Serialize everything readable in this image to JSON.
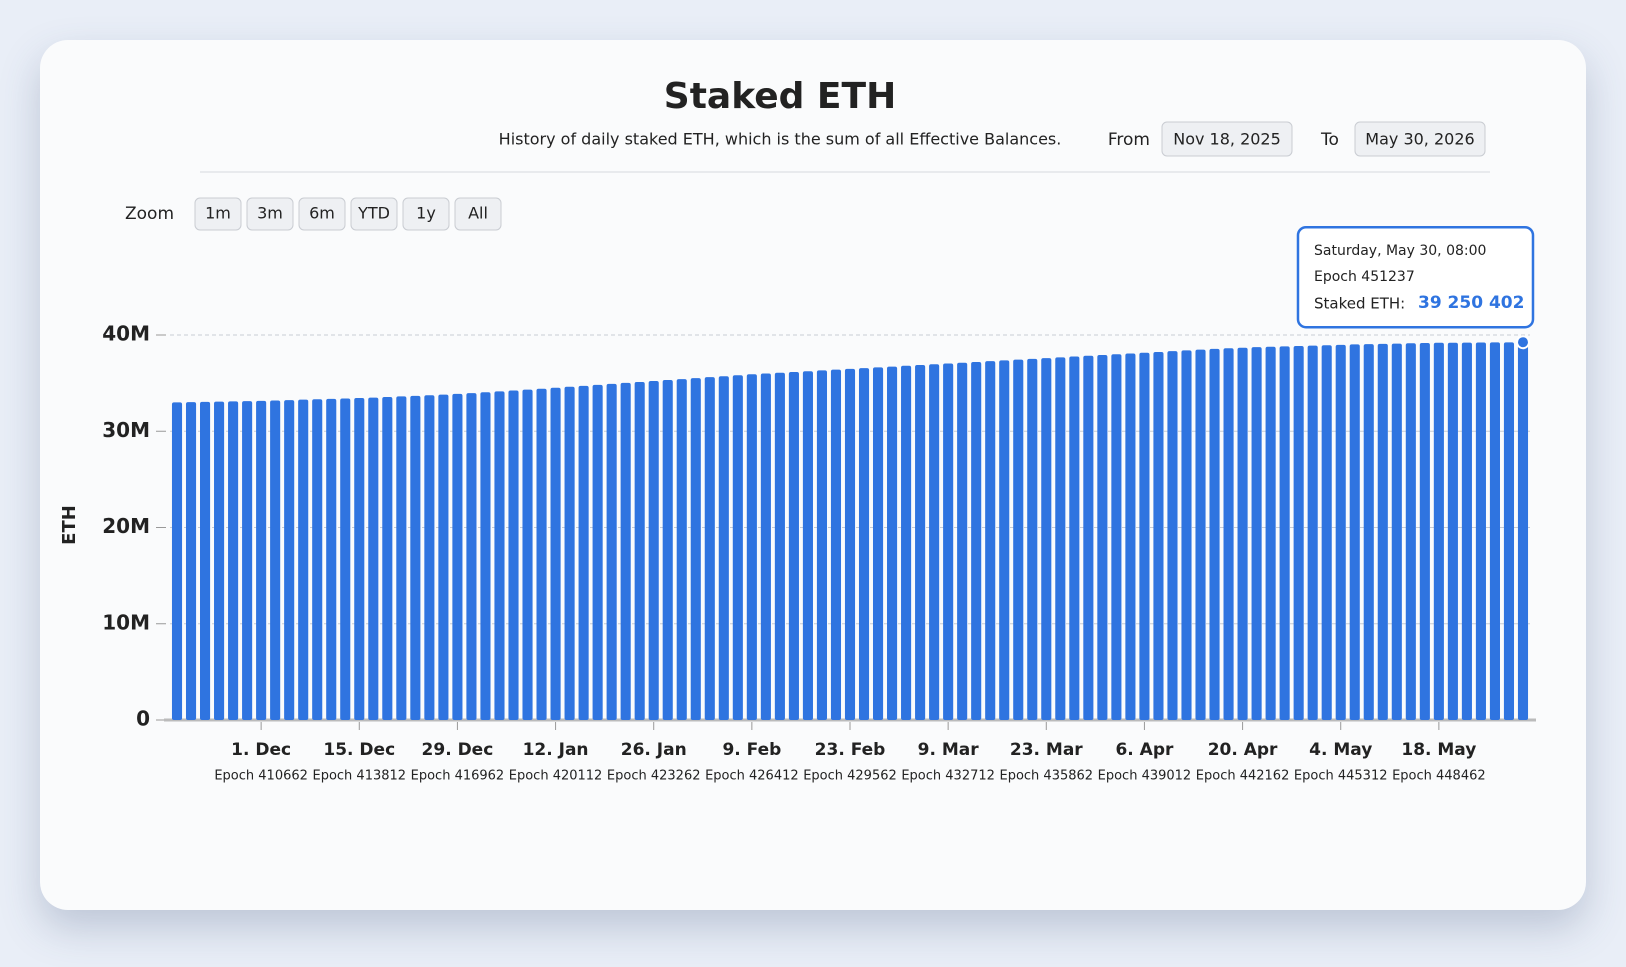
{
  "controls": {
    "zoom_label": "Zoom",
    "zoom_buttons": [
      "1m",
      "3m",
      "6m",
      "YTD",
      "1y",
      "All"
    ],
    "from_label": "From",
    "from": "Nov 18, 2025",
    "to_label": "To",
    "to": "May 30, 2026"
  },
  "chart_data": {
    "type": "bar",
    "title": "Staked ETH",
    "subtitle": "History of daily staked ETH, which is the sum of all Effective Balances.",
    "y_label": "ETH",
    "color": "#2f74e0",
    "grid": true,
    "ylim": [
      0,
      40000000
    ],
    "yticks": [
      0,
      {
        "value": 10000000,
        "label": "10M"
      },
      {
        "value": 20000000,
        "label": "20M"
      },
      {
        "value": 30000000,
        "label": "30M"
      },
      {
        "value": 40000000,
        "label": "40M"
      }
    ],
    "categories": [
      null,
      null,
      null,
      null,
      null,
      null,
      "1. Dec",
      null,
      null,
      null,
      null,
      null,
      null,
      "15. Dec",
      null,
      null,
      null,
      null,
      null,
      null,
      "29. Dec",
      null,
      null,
      null,
      null,
      null,
      null,
      "12. Jan",
      null,
      null,
      null,
      null,
      null,
      null,
      "26. Jan",
      null,
      null,
      null,
      null,
      null,
      null,
      "9. Feb",
      null,
      null,
      null,
      null,
      null,
      null,
      "23. Feb",
      null,
      null,
      null,
      null,
      null,
      null,
      "9. Mar",
      null,
      null,
      null,
      null,
      null,
      null,
      "23. Mar",
      null,
      null,
      null,
      null,
      null,
      null,
      "6. Apr",
      null,
      null,
      null,
      null,
      null,
      null,
      "20. Apr",
      null,
      null,
      null,
      null,
      null,
      null,
      "4. May",
      null,
      null,
      null,
      null,
      null,
      null,
      "18. May",
      null,
      null,
      null,
      null,
      null,
      null
    ],
    "epochs": [
      null,
      null,
      null,
      null,
      null,
      null,
      "Epoch 410662",
      null,
      null,
      null,
      null,
      null,
      null,
      "Epoch 413812",
      null,
      null,
      null,
      null,
      null,
      null,
      "Epoch 416962",
      null,
      null,
      null,
      null,
      null,
      null,
      "Epoch 420112",
      null,
      null,
      null,
      null,
      null,
      null,
      "Epoch 423262",
      null,
      null,
      null,
      null,
      null,
      null,
      "Epoch 426412",
      null,
      null,
      null,
      null,
      null,
      null,
      "Epoch 429562",
      null,
      null,
      null,
      null,
      null,
      null,
      "Epoch 432712",
      null,
      null,
      null,
      null,
      null,
      null,
      "Epoch 435862",
      null,
      null,
      null,
      null,
      null,
      null,
      "Epoch 439012",
      null,
      null,
      null,
      null,
      null,
      null,
      "Epoch 442162",
      null,
      null,
      null,
      null,
      null,
      null,
      "Epoch 445312",
      null,
      null,
      null,
      null,
      null,
      null,
      "Epoch 448462",
      null,
      null,
      null,
      null,
      null,
      null
    ],
    "values": [
      33000000,
      33020000,
      33050000,
      33080000,
      33100000,
      33130000,
      33160000,
      33200000,
      33240000,
      33280000,
      33320000,
      33360000,
      33400000,
      33450000,
      33500000,
      33560000,
      33620000,
      33680000,
      33740000,
      33800000,
      33880000,
      33960000,
      34050000,
      34140000,
      34230000,
      34320000,
      34420000,
      34520000,
      34620000,
      34720000,
      34820000,
      34920000,
      35020000,
      35120000,
      35220000,
      35320000,
      35420000,
      35520000,
      35620000,
      35720000,
      35820000,
      35920000,
      36000000,
      36080000,
      36160000,
      36240000,
      36320000,
      36400000,
      36480000,
      36560000,
      36640000,
      36720000,
      36800000,
      36880000,
      36960000,
      37040000,
      37120000,
      37200000,
      37280000,
      37360000,
      37440000,
      37520000,
      37600000,
      37680000,
      37760000,
      37840000,
      37920000,
      38000000,
      38080000,
      38160000,
      38240000,
      38320000,
      38400000,
      38480000,
      38560000,
      38620000,
      38680000,
      38740000,
      38780000,
      38820000,
      38860000,
      38900000,
      38940000,
      38980000,
      39020000,
      39050000,
      39080000,
      39110000,
      39140000,
      39170000,
      39190000,
      39200000,
      39210000,
      39220000,
      39230000,
      39240000,
      39250402
    ],
    "tooltip": {
      "date": "Saturday, May 30, 08:00",
      "epoch": "Epoch 451237",
      "label": "Staked ETH:",
      "value_label": "39 250 402"
    }
  }
}
